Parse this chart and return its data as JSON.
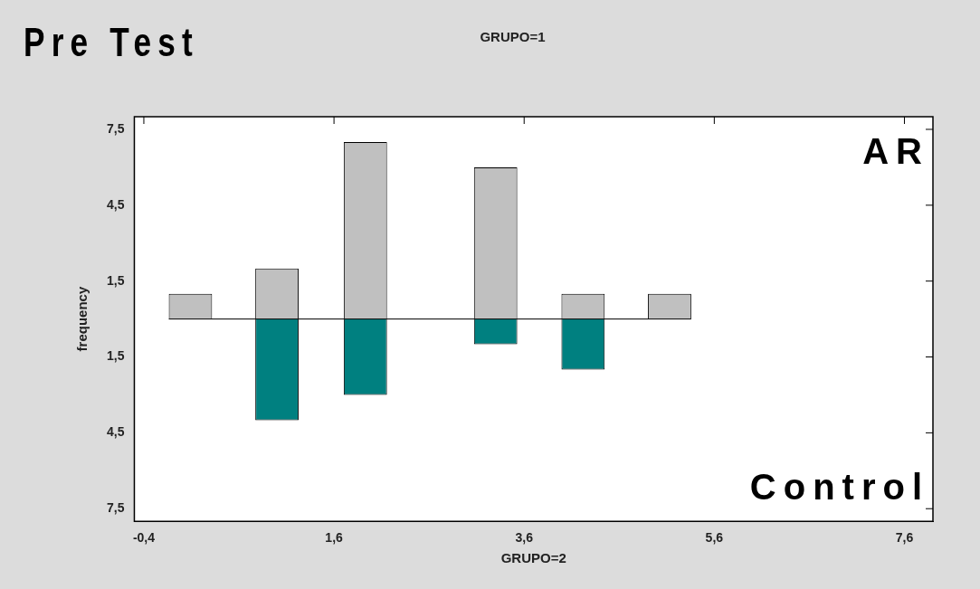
{
  "chart_data": {
    "type": "bar",
    "title": "Pre Test",
    "subtitle": "GRUPO=1",
    "xlabel": "GRUPO=2",
    "ylabel": "frequency",
    "x": [
      0.09,
      1.0,
      1.93,
      3.3,
      4.22,
      5.13
    ],
    "series": [
      {
        "name": "AR",
        "color": "#c0c0c0",
        "values": [
          1,
          2,
          7,
          6,
          1,
          1
        ]
      },
      {
        "name": "Control",
        "color": "#008080",
        "values": [
          null,
          -4,
          -3,
          -1,
          -2,
          null
        ]
      }
    ],
    "xlim": [
      -0.5,
      7.9
    ],
    "ylim": [
      -8,
      8
    ],
    "xticks": [
      {
        "value": -0.4,
        "label": "-0,4"
      },
      {
        "value": 1.6,
        "label": "1,6"
      },
      {
        "value": 3.6,
        "label": "3,6"
      },
      {
        "value": 5.6,
        "label": "5,6"
      },
      {
        "value": 7.6,
        "label": "7,6"
      }
    ],
    "yticks": [
      {
        "value": -7.5,
        "label": "7,5"
      },
      {
        "value": -4.5,
        "label": "4,5"
      },
      {
        "value": -1.5,
        "label": "1,5"
      },
      {
        "value": 1.5,
        "label": "1,5"
      },
      {
        "value": 4.5,
        "label": "4,5"
      },
      {
        "value": 7.5,
        "label": "7,5"
      }
    ],
    "ref_lines": [
      {
        "axis": "y",
        "value": 0,
        "color": "#000000"
      }
    ],
    "stacked": true,
    "grid": false,
    "legend": false
  }
}
